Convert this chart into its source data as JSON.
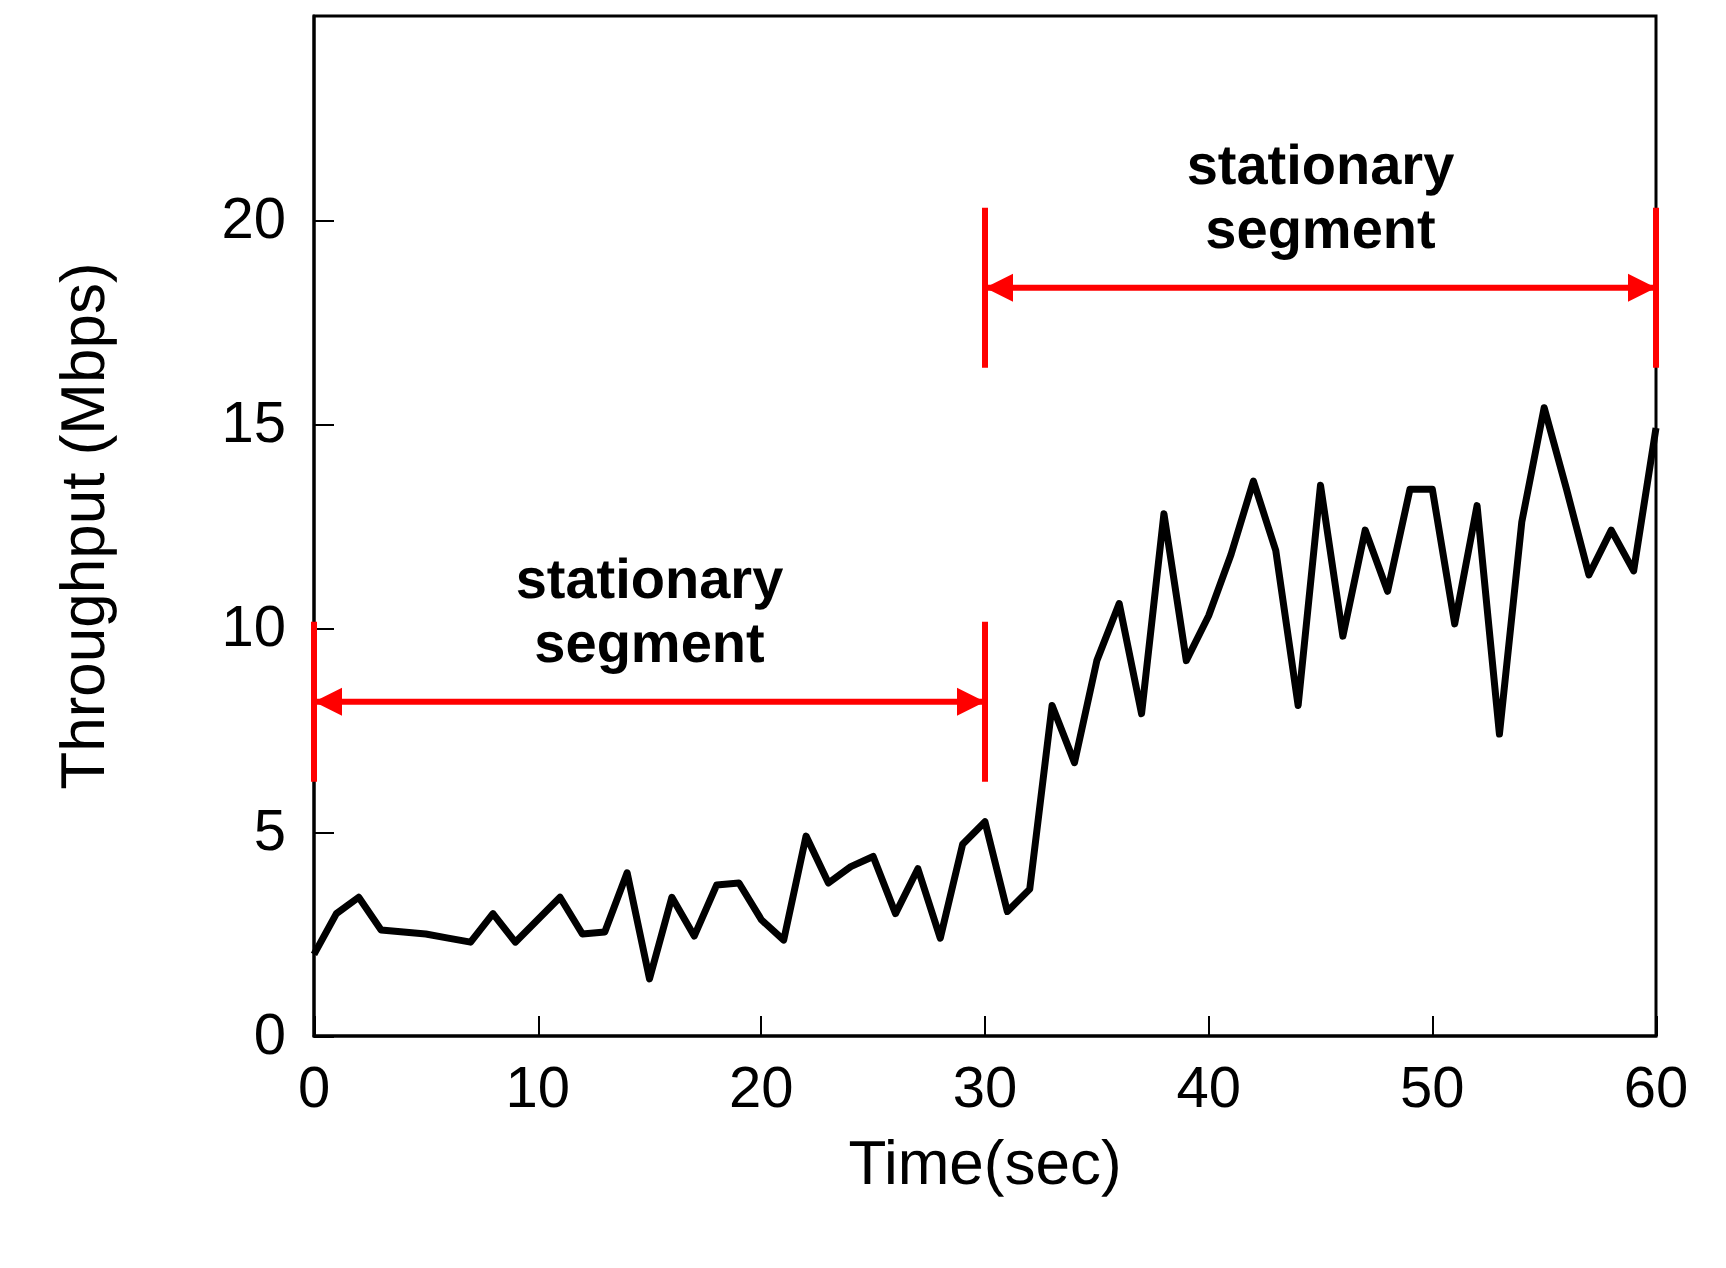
{
  "chart_data": {
    "type": "line",
    "xlabel": "Time(sec)",
    "ylabel": "Throughput (Mbps)",
    "x": [
      0,
      1,
      2,
      3,
      4,
      5,
      6,
      7,
      8,
      9,
      10,
      11,
      12,
      13,
      14,
      15,
      16,
      17,
      18,
      19,
      20,
      21,
      22,
      23,
      24,
      25,
      26,
      27,
      28,
      29,
      30,
      31,
      32,
      33,
      34,
      35,
      36,
      37,
      38,
      39,
      40,
      41,
      42,
      43,
      44,
      45,
      46,
      47,
      48,
      49,
      50,
      51,
      52,
      53,
      54,
      55,
      56,
      57,
      58,
      59,
      60
    ],
    "series": [
      {
        "color": "#000000",
        "values": [
          2.0,
          3.0,
          3.4,
          2.6,
          2.55,
          2.5,
          2.4,
          2.3,
          3.0,
          2.3,
          2.85,
          3.4,
          2.5,
          2.55,
          4.0,
          1.4,
          3.4,
          2.45,
          3.7,
          3.75,
          2.85,
          2.35,
          4.9,
          3.75,
          4.15,
          4.4,
          3.0,
          4.1,
          2.4,
          4.7,
          5.25,
          3.05,
          3.6,
          8.1,
          6.7,
          9.2,
          10.6,
          7.9,
          12.8,
          9.2,
          10.3,
          11.8,
          13.6,
          11.9,
          8.1,
          13.5,
          9.8,
          12.4,
          10.9,
          13.4,
          13.4,
          10.1,
          13.0,
          7.4,
          12.6,
          15.4,
          13.4,
          11.3,
          12.4,
          11.4,
          14.9
        ]
      }
    ],
    "annotations": [
      "stationary segment",
      "stationary segment"
    ],
    "xlim": [
      0,
      60
    ],
    "xticks": [
      0,
      10,
      20,
      30,
      40,
      50,
      60
    ],
    "ylim": [
      0,
      25
    ],
    "yticks": [
      0,
      5,
      10,
      15,
      20
    ],
    "grid": false,
    "marker": "none",
    "line_style": "solid"
  }
}
